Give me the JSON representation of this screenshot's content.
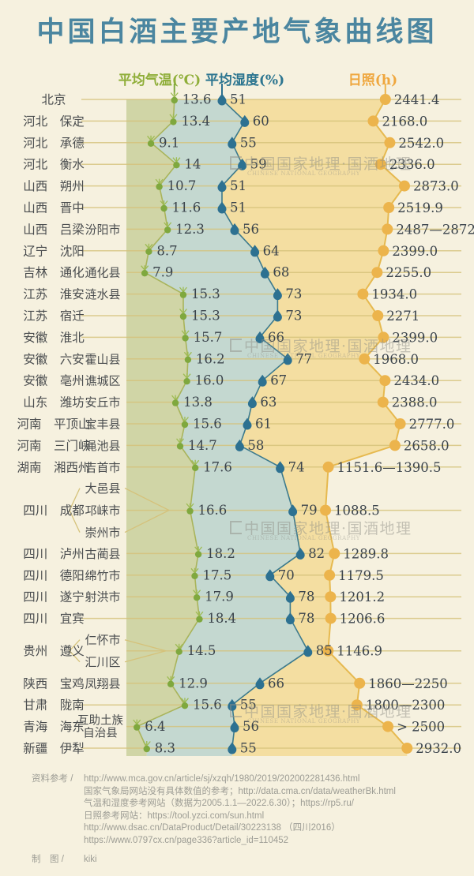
{
  "title": "中国白酒主要产地气象曲线图",
  "watermark": {
    "text": "中国国家地理·国酒地理",
    "subtext": "CHINESE NATIONAL GEOGRAPHY"
  },
  "chart_data": {
    "type": "line",
    "orientation": "vertical ridgeline list, one row per place",
    "series_headers": [
      {
        "label": "平均气温(℃)",
        "color": "#8fae39"
      },
      {
        "label": "平均湿度(%)",
        "color": "#2c7590"
      },
      {
        "label": "日照(h)",
        "color": "#efa73e"
      }
    ],
    "area_colors": {
      "temp_band": "#d0d5a6",
      "humidity_area": "#c4d8d0",
      "sun_area": "#f4dea1",
      "background": "#f6f1df"
    },
    "grid_color": "#d5c27a",
    "point_colors": {
      "temp": "#7fa83e",
      "humidity": "#2d7191",
      "sun": "#ecb44c"
    },
    "rows": [
      {
        "province": "",
        "city": "北京",
        "counties": [],
        "temp": "13.6",
        "humidity": 51,
        "sun": "2441.4"
      },
      {
        "province": "河北",
        "city": "保定",
        "counties": [],
        "temp": "13.4",
        "humidity": 60,
        "sun": "2168.0"
      },
      {
        "province": "河北",
        "city": "承德",
        "counties": [],
        "temp": "9.1",
        "humidity": 55,
        "sun": "2542.0"
      },
      {
        "province": "河北",
        "city": "衡水",
        "counties": [],
        "temp": "14",
        "humidity": 59,
        "sun": "2336.0"
      },
      {
        "province": "山西",
        "city": "朔州",
        "counties": [],
        "temp": "10.7",
        "humidity": 51,
        "sun": "2873.0"
      },
      {
        "province": "山西",
        "city": "晋中",
        "counties": [],
        "temp": "11.6",
        "humidity": 51,
        "sun": "2519.9"
      },
      {
        "province": "山西",
        "city": "吕梁",
        "counties": [
          "汾阳市"
        ],
        "temp": "12.3",
        "humidity": 56,
        "sun": "2487—2872"
      },
      {
        "province": "辽宁",
        "city": "沈阳",
        "counties": [],
        "temp": "8.7",
        "humidity": 64,
        "sun": "2399.0"
      },
      {
        "province": "吉林",
        "city": "通化",
        "counties": [
          "通化县"
        ],
        "temp": "7.9",
        "humidity": 68,
        "sun": "2255.0"
      },
      {
        "province": "江苏",
        "city": "淮安",
        "counties": [
          "涟水县"
        ],
        "temp": "15.3",
        "humidity": 73,
        "sun": "1934.0"
      },
      {
        "province": "江苏",
        "city": "宿迁",
        "counties": [],
        "temp": "15.3",
        "humidity": 73,
        "sun": "2271"
      },
      {
        "province": "安徽",
        "city": "淮北",
        "counties": [],
        "temp": "15.7",
        "humidity": 66,
        "sun": "2399.0"
      },
      {
        "province": "安徽",
        "city": "六安",
        "counties": [
          "霍山县"
        ],
        "temp": "16.2",
        "humidity": 77,
        "sun": "1968.0"
      },
      {
        "province": "安徽",
        "city": "亳州",
        "counties": [
          "谯城区"
        ],
        "temp": "16.0",
        "humidity": 67,
        "sun": "2434.0"
      },
      {
        "province": "山东",
        "city": "潍坊",
        "counties": [
          "安丘市"
        ],
        "temp": "13.8",
        "humidity": 63,
        "sun": "2388.0"
      },
      {
        "province": "河南",
        "city": "平顶山",
        "counties": [
          "宝丰县"
        ],
        "temp": "15.6",
        "humidity": 61,
        "sun": "2777.0"
      },
      {
        "province": "河南",
        "city": "三门峡",
        "counties": [
          "渑池县"
        ],
        "temp": "14.7",
        "humidity": 58,
        "sun": "2658.0"
      },
      {
        "province": "湖南",
        "city": "湘西州",
        "counties": [
          "吉首市"
        ],
        "temp": "17.6",
        "humidity": 74,
        "sun": "1151.6—1390.5"
      },
      {
        "province": "四川",
        "city": "成都",
        "counties": [
          "大邑县",
          "邛崃市",
          "崇州市"
        ],
        "temp": "16.6",
        "humidity": 79,
        "sun": "1088.5"
      },
      {
        "province": "四川",
        "city": "泸州",
        "counties": [
          "古蔺县"
        ],
        "temp": "18.2",
        "humidity": 82,
        "sun": "1289.8"
      },
      {
        "province": "四川",
        "city": "德阳",
        "counties": [
          "绵竹市"
        ],
        "temp": "17.5",
        "humidity": 70,
        "sun": "1179.5"
      },
      {
        "province": "四川",
        "city": "遂宁",
        "counties": [
          "射洪市"
        ],
        "temp": "17.9",
        "humidity": 78,
        "sun": "1201.2"
      },
      {
        "province": "四川",
        "city": "宜宾",
        "counties": [],
        "temp": "18.4",
        "humidity": 78,
        "sun": "1206.6"
      },
      {
        "province": "贵州",
        "city": "遵义",
        "counties": [
          "仁怀市",
          "汇川区"
        ],
        "temp": "14.5",
        "humidity": 85,
        "sun": "1146.9"
      },
      {
        "province": "陕西",
        "city": "宝鸡",
        "counties": [
          "凤翔县"
        ],
        "temp": "12.9",
        "humidity": 66,
        "sun": "1860—2250"
      },
      {
        "province": "甘肃",
        "city": "陇南",
        "counties": [],
        "temp": "15.6",
        "humidity": 55,
        "sun": "1800—2300"
      },
      {
        "province": "青海",
        "city": "海东",
        "counties": [
          "互助土族自治县"
        ],
        "temp": "6.4",
        "humidity": 56,
        "sun": "> 2500"
      },
      {
        "province": "新疆",
        "city": "伊犁",
        "counties": [],
        "temp": "8.3",
        "humidity": 55,
        "sun": "2932.0"
      }
    ]
  },
  "footer": {
    "ref_label": "资料参考 /",
    "refs": [
      "http://www.mca.gov.cn/article/sj/xzqh/1980/2019/202002281436.html",
      "国家气象局网站没有具体数值的参考；http://data.cma.cn/data/weatherBk.html",
      "气温和湿度参考网站（数据为2005.1.1—2022.6.30）；https://rp5.ru/",
      "日照参考网站：https://tool.yzci.com/sun.html",
      "http://www.dsac.cn/DataProduct/Detail/30223138 （四川2016）",
      "https://www.0797cx.cn/page336?article_id=110452"
    ],
    "credit_label": "制　图 /",
    "credit_value": "kiki"
  }
}
